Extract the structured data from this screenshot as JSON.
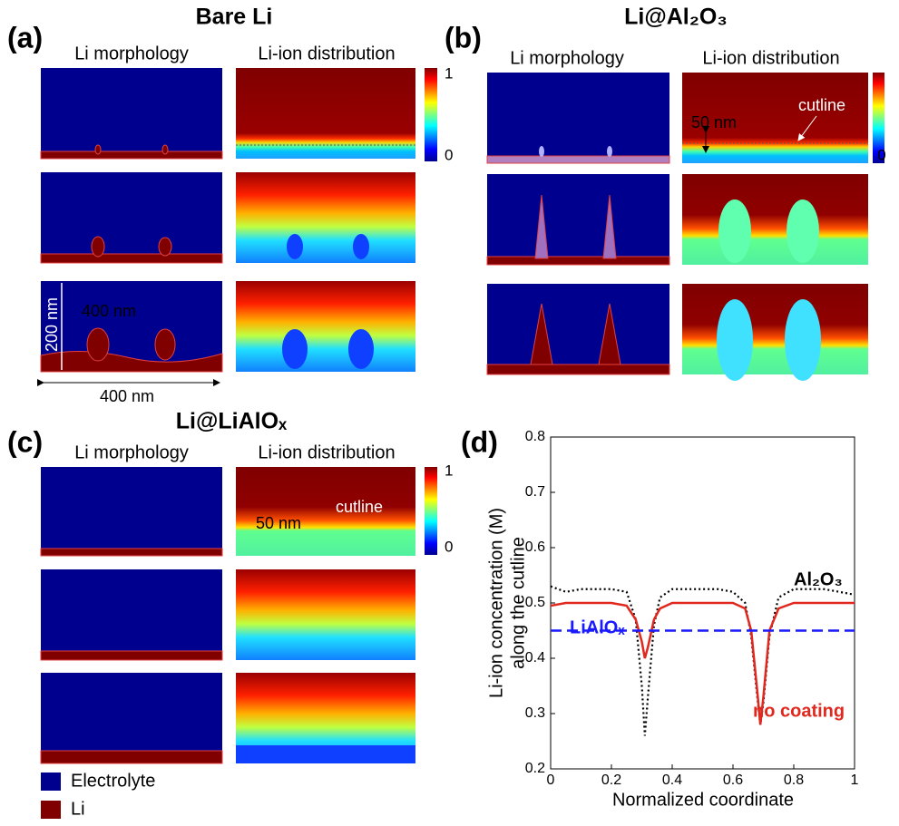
{
  "panels": [
    {
      "label": "(a)",
      "title": "Bare Li",
      "headers": [
        "Li morphology",
        "Li-ion distribution"
      ],
      "colorbar": [
        1,
        0
      ],
      "annotations": [
        "400 nm",
        "200 nm",
        "400 nm"
      ]
    },
    {
      "label": "(b)",
      "title": "Li@Al₂O₃",
      "headers": [
        "Li morphology",
        "Li-ion distribution"
      ],
      "colorbar": [
        1,
        0
      ],
      "annotations": [
        "50 nm",
        "cutline"
      ]
    },
    {
      "label": "(c)",
      "title": "Li@LiAlOₓ",
      "headers": [
        "Li morphology",
        "Li-ion distribution"
      ],
      "colorbar": [
        1,
        0
      ],
      "annotations": [
        "cutline",
        "50 nm"
      ]
    }
  ],
  "legend": [
    "Electrolyte",
    "Li"
  ],
  "chart_data": {
    "type": "line",
    "label": "(d)",
    "xlabel": "Normalized coordinate",
    "ylabel": [
      "Li-ion concentration (M)",
      "along the cutline"
    ],
    "x": [
      0,
      0.05,
      0.1,
      0.15,
      0.2,
      0.25,
      0.28,
      0.3,
      0.31,
      0.32,
      0.34,
      0.36,
      0.4,
      0.45,
      0.5,
      0.55,
      0.6,
      0.64,
      0.66,
      0.68,
      0.69,
      0.7,
      0.72,
      0.75,
      0.8,
      0.85,
      0.9,
      0.95,
      1
    ],
    "series": [
      {
        "name": "Al₂O₃",
        "color": "#000000",
        "dash": "dotted",
        "values": [
          0.53,
          0.52,
          0.525,
          0.525,
          0.525,
          0.52,
          0.47,
          0.35,
          0.26,
          0.33,
          0.46,
          0.51,
          0.525,
          0.525,
          0.525,
          0.525,
          0.52,
          0.5,
          0.44,
          0.33,
          0.28,
          0.32,
          0.44,
          0.51,
          0.525,
          0.525,
          0.525,
          0.52,
          0.515
        ]
      },
      {
        "name": "no coating",
        "color": "#e0281e",
        "dash": "solid",
        "values": [
          0.495,
          0.5,
          0.5,
          0.5,
          0.5,
          0.495,
          0.47,
          0.43,
          0.4,
          0.42,
          0.47,
          0.49,
          0.5,
          0.5,
          0.5,
          0.5,
          0.5,
          0.49,
          0.45,
          0.34,
          0.28,
          0.33,
          0.45,
          0.49,
          0.5,
          0.5,
          0.5,
          0.5,
          0.5
        ]
      },
      {
        "name": "LiAlOₓ",
        "color": "#1a1aff",
        "dash": "dashed",
        "values": [
          0.45,
          0.45,
          0.45,
          0.45,
          0.45,
          0.45,
          0.45,
          0.45,
          0.45,
          0.45,
          0.45,
          0.45,
          0.45,
          0.45,
          0.45,
          0.45,
          0.45,
          0.45,
          0.45,
          0.45,
          0.45,
          0.45,
          0.45,
          0.45,
          0.45,
          0.45,
          0.45,
          0.45,
          0.45
        ]
      }
    ],
    "xlim": [
      0,
      1
    ],
    "xticks": [
      0,
      0.2,
      0.4,
      0.6,
      0.8,
      1
    ],
    "ylim": [
      0.2,
      0.8
    ],
    "yticks": [
      0.2,
      0.3,
      0.4,
      0.5,
      0.6,
      0.7,
      0.8
    ]
  }
}
